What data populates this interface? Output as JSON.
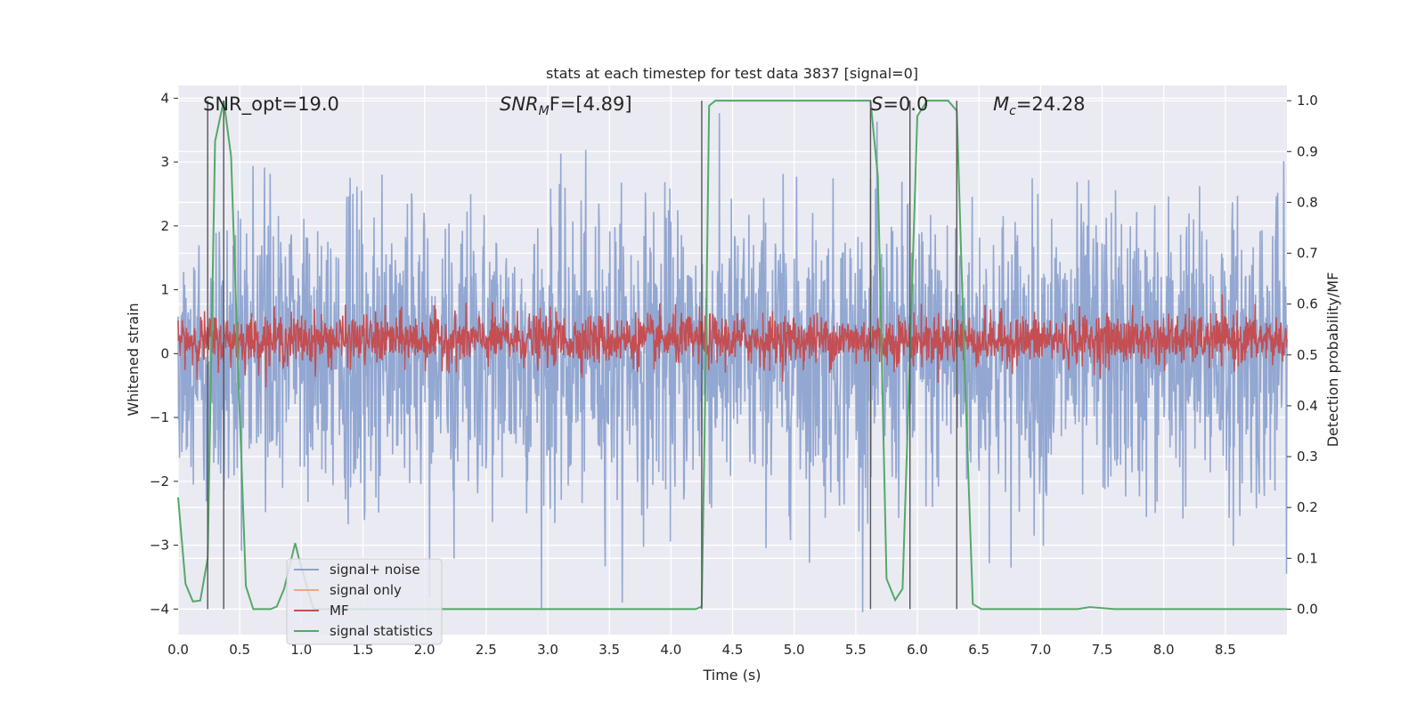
{
  "chart_data": {
    "type": "line",
    "title": "stats at each timestep for test data 3837 [signal=0]",
    "xlabel": "Time (s)",
    "ylabel_left": "Whitened strain",
    "ylabel_right": "Detection probability/MF",
    "xlim": [
      0.0,
      9.0
    ],
    "ylim_left": [
      -4.4,
      4.2
    ],
    "ylim_right": [
      -0.05,
      1.03
    ],
    "xticks": [
      0.0,
      0.5,
      1.0,
      1.5,
      2.0,
      2.5,
      3.0,
      3.5,
      4.0,
      4.5,
      5.0,
      5.5,
      6.0,
      6.5,
      7.0,
      7.5,
      8.0,
      8.5
    ],
    "xtick_labels": [
      "0.0",
      "0.5",
      "1.0",
      "1.5",
      "2.0",
      "2.5",
      "3.0",
      "3.5",
      "4.0",
      "4.5",
      "5.0",
      "5.5",
      "6.0",
      "6.5",
      "7.0",
      "7.5",
      "8.0",
      "8.5"
    ],
    "yticks_left": [
      -4,
      -3,
      -2,
      -1,
      0,
      1,
      2,
      3,
      4
    ],
    "ytick_labels_left": [
      "−4",
      "−3",
      "−2",
      "−1",
      "0",
      "1",
      "2",
      "3",
      "4"
    ],
    "yticks_right": [
      0.0,
      0.1,
      0.2,
      0.3,
      0.4,
      0.5,
      0.6,
      0.7,
      0.8,
      0.9,
      1.0
    ],
    "ytick_labels_right": [
      "0.0",
      "0.1",
      "0.2",
      "0.3",
      "0.4",
      "0.5",
      "0.6",
      "0.7",
      "0.8",
      "0.9",
      "1.0"
    ],
    "annotations": [
      {
        "text": "SNR_opt=19.0",
        "x": 0.2,
        "y": 4.0
      },
      {
        "main": "SNR",
        "sub": "M",
        "rest": "F=[4.89]",
        "x": 2.6,
        "y": 4.0
      },
      {
        "main": "S",
        "sub": "",
        "rest": "=0.0",
        "x": 5.6,
        "y": 4.0
      },
      {
        "main": "M",
        "sub": "c",
        "rest": "=24.28",
        "x": 6.6,
        "y": 4.0
      }
    ],
    "vertical_lines_x": [
      0.24,
      0.37,
      4.25,
      5.62,
      5.94,
      6.32
    ],
    "legend": {
      "location": "lower-left",
      "entries": [
        {
          "label": "signal+ noise",
          "color": "#8da3cf"
        },
        {
          "label": "signal only",
          "color": "#e8a98a"
        },
        {
          "label": "MF",
          "color": "#c44e52"
        },
        {
          "label": "signal statistics",
          "color": "#55a868"
        }
      ]
    },
    "series": [
      {
        "name": "signal+ noise",
        "axis": "left",
        "color": "#8da3cf",
        "style": "noise",
        "x_range": [
          0.0,
          9.0
        ],
        "mean": 0.0,
        "std": 1.0
      },
      {
        "name": "signal only",
        "axis": "left",
        "color": "#e8a98a",
        "style": "flat",
        "value": 0.0
      },
      {
        "name": "MF",
        "axis": "right",
        "color": "#c44e52",
        "style": "noise",
        "x_range": [
          0.0,
          9.0
        ],
        "mean": 0.53,
        "std": 0.025
      },
      {
        "name": "signal statistics",
        "axis": "right",
        "color": "#55a868",
        "style": "line",
        "x": [
          0.0,
          0.06,
          0.12,
          0.18,
          0.24,
          0.3,
          0.37,
          0.43,
          0.49,
          0.55,
          0.61,
          0.75,
          0.8,
          0.86,
          0.92,
          0.95,
          0.98,
          1.05,
          1.1,
          2.0,
          3.0,
          4.2,
          4.25,
          4.28,
          4.31,
          4.36,
          4.5,
          5.0,
          5.55,
          5.62,
          5.68,
          5.75,
          5.82,
          5.88,
          5.94,
          6.0,
          6.08,
          6.25,
          6.32,
          6.38,
          6.45,
          6.52,
          6.6,
          7.0,
          7.3,
          7.4,
          7.6,
          8.0,
          9.0
        ],
        "y": [
          0.22,
          0.05,
          0.015,
          0.017,
          0.1,
          0.92,
          1.0,
          0.89,
          0.45,
          0.045,
          0.0,
          0.0,
          0.005,
          0.04,
          0.1,
          0.13,
          0.1,
          0.04,
          0.0,
          0.0,
          0.0,
          0.0,
          0.005,
          0.45,
          0.99,
          1.0,
          1.0,
          1.0,
          1.0,
          1.0,
          0.85,
          0.06,
          0.018,
          0.04,
          0.5,
          0.97,
          1.0,
          1.0,
          0.98,
          0.5,
          0.01,
          0.0,
          0.0,
          0.0,
          0.0,
          0.004,
          0.0,
          0.0,
          0.0
        ]
      }
    ]
  }
}
